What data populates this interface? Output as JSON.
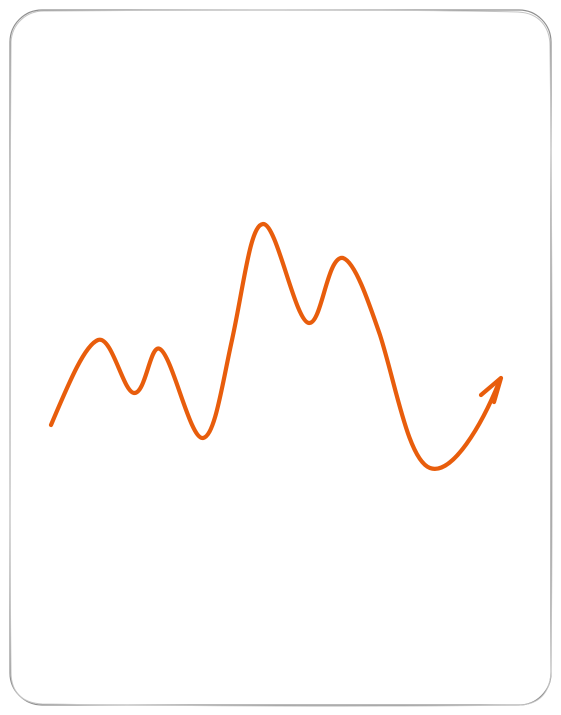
{
  "colors": {
    "stroke": "#e85d0c",
    "frame": "#8f8f8f",
    "frame_sketch": "#c4c4c4",
    "background": "#ffffff"
  },
  "icons": [
    "arrowhead-icon"
  ]
}
